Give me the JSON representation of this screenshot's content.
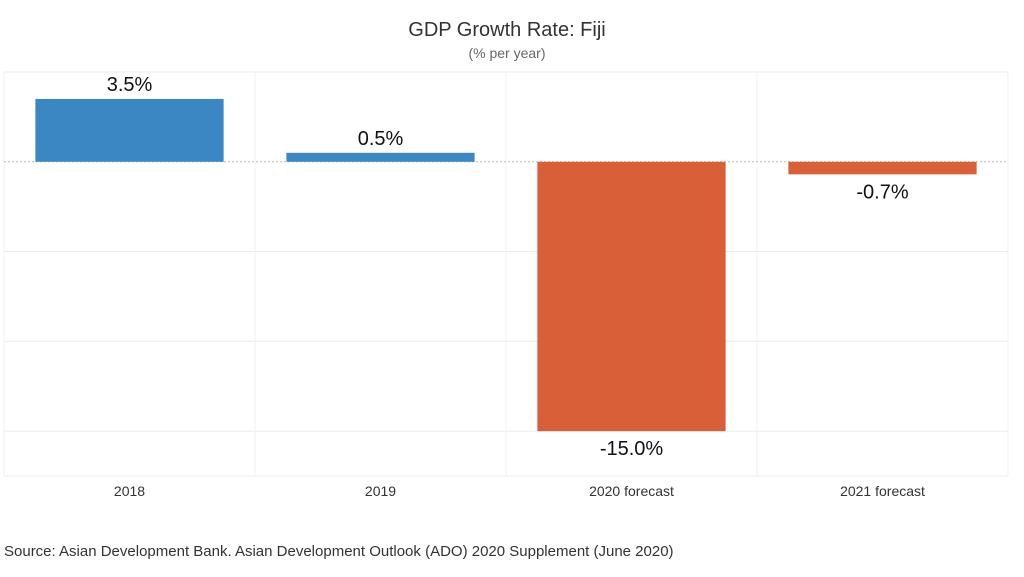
{
  "chart_data": {
    "type": "bar",
    "title": "GDP Growth Rate: Fiji",
    "subtitle": "(% per year)",
    "categories": [
      "2018",
      "2019",
      "2020 forecast",
      "2021 forecast"
    ],
    "values": [
      3.5,
      0.5,
      -15.0,
      -0.7
    ],
    "data_labels": [
      "3.5%",
      "0.5%",
      "-15.0%",
      "-0.7%"
    ],
    "ylim": [
      -17.5,
      5
    ],
    "grid": true,
    "legend": "none",
    "colors": {
      "positive": "#3a87c4",
      "negative": "#d95f39"
    }
  },
  "source": "Source: Asian Development Bank. Asian Development Outlook (ADO) 2020 Supplement (June 2020)"
}
